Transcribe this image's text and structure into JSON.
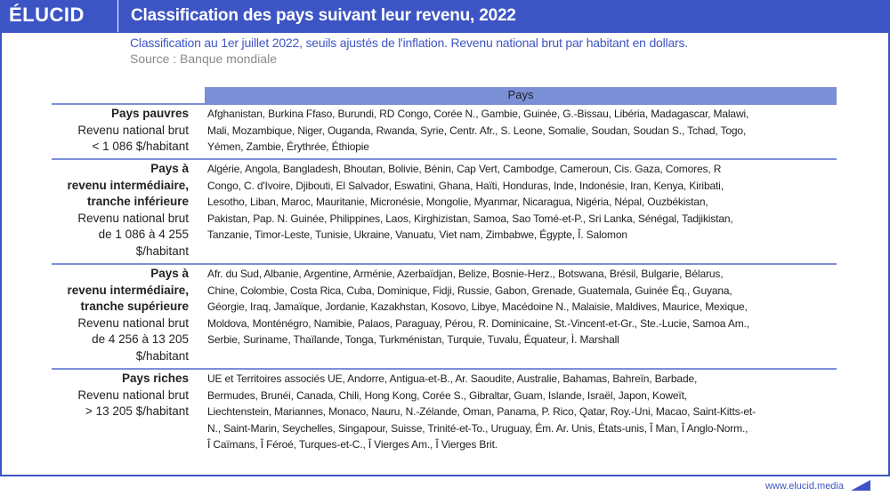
{
  "header": {
    "logo": "ÉLUCID",
    "title": "Classification des pays suivant leur revenu, 2022"
  },
  "subtitle": "Classification au 1er juillet 2022, seuils ajustés de l'inflation. Revenu national brut par habitant en dollars.",
  "source": "Source : Banque mondiale",
  "table": {
    "column_header": "Pays",
    "rows": [
      {
        "label_bold": [
          "Pays pauvres"
        ],
        "label": [
          "Revenu national brut",
          "< 1 086 $/habitant"
        ],
        "lines": [
          "Afghanistan, Burkina Ffaso, Burundi, RD Congo, Corée N., Gambie, Guinée, G.-Bissau, Libéria, Madagascar, Malawi,",
          "Mali, Mozambique, Niger, Ouganda, Rwanda, Syrie, Centr. Afr., S. Leone, Somalie, Soudan, Soudan S., Tchad, Togo,",
          "Yémen, Zambie, Érythrée, Éthiopie"
        ]
      },
      {
        "label_bold": [
          "Pays à",
          "revenu intermédiaire,",
          "tranche inférieure"
        ],
        "label": [
          "Revenu national brut",
          "de 1 086 à 4 255",
          "$/habitant"
        ],
        "lines": [
          "Algérie, Angola, Bangladesh, Bhoutan, Bolivie, Bénin, Cap Vert, Cambodge, Cameroun, Cis. Gaza, Comores, R",
          "Congo, C. d'Ivoire, Djibouti, El Salvador, Eswatini, Ghana, Haïti, Honduras, Inde, Indonésie, Iran, Kenya, Kiribati,",
          "Lesotho, Liban, Maroc, Mauritanie, Micronésie, Mongolie, Myanmar, Nicaragua, Nigéria, Népal, Ouzbékistan,",
          "Pakistan, Pap. N. Guinée, Philippines, Laos, Kirghizistan, Samoa, Sao Tomé-et-P., Sri Lanka, Sénégal, Tadjikistan,",
          "Tanzanie, Timor-Leste, Tunisie, Ukraine, Vanuatu, Viet nam, Zimbabwe, Égypte, Î. Salomon"
        ]
      },
      {
        "label_bold": [
          "Pays à",
          "revenu intermédiaire,",
          "tranche supérieure"
        ],
        "label": [
          "Revenu national brut",
          "de 4 256 à 13 205",
          "$/habitant"
        ],
        "lines": [
          "Afr. du Sud, Albanie, Argentine, Arménie, Azerbaïdjan, Belize, Bosnie-Herz., Botswana, Brésil, Bulgarie, Bélarus,",
          "Chine, Colombie, Costa Rica, Cuba, Dominique, Fidji, Russie, Gabon, Grenade, Guatemala, Guinée Éq., Guyana,",
          "Géorgie, Iraq, Jamaïque, Jordanie, Kazakhstan, Kosovo, Libye, Macédoine N., Malaisie, Maldives, Maurice, Mexique,",
          "Moldova, Monténégro, Namibie, Palaos, Paraguay, Pérou, R. Dominicaine, St.-Vincent-et-Gr., Ste.-Lucie, Samoa Am.,",
          "Serbie, Suriname, Thaïlande, Tonga, Turkménistan, Turquie, Tuvalu, Équateur, Ì. Marshall"
        ]
      },
      {
        "label_bold": [
          "Pays riches"
        ],
        "label": [
          "Revenu national brut",
          "> 13 205 $/habitant"
        ],
        "lines": [
          "UE et Territoires associés UE, Andorre, Antigua-et-B., Ar. Saoudite, Australie, Bahamas, Bahreïn, Barbade,",
          "Bermudes, Brunéi, Canada, Chili, Hong Kong, Corée S., Gibraltar, Guam, Islande, Israël, Japon, Koweït,",
          "Liechtenstein, Mariannes, Monaco, Nauru, N.-Zélande, Oman, Panama, P. Rico, Qatar, Roy.-Uni, Macao, Saint-Kitts-et-",
          "N., Saint-Marin, Seychelles, Singapour, Suisse, Trinité-et-To., Uruguay, Ém. Ar. Unis, États-unis, Î Man, Î Anglo-Norm.,",
          "Î Caïmans, Î Féroé, Turques-et-C., Î Vierges Am., Î Vierges Brit."
        ]
      }
    ]
  },
  "footer": {
    "url": "www.elucid.media"
  },
  "colors": {
    "brand": "#3d55c4",
    "table_header": "#7b8fd6"
  }
}
